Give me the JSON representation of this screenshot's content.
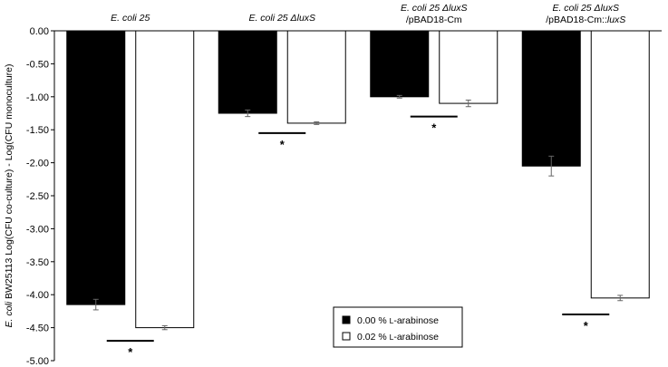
{
  "chart_data": {
    "type": "bar",
    "ylabel_parts": [
      {
        "text": "E. coli",
        "italic": true
      },
      {
        "text": " BW25113 Log(CFU co-culture) - Log(CFU monoculture)",
        "italic": false
      }
    ],
    "ylim": [
      -5.0,
      0.0
    ],
    "ytick_step": 0.5,
    "ytick_labels": [
      "0.00",
      "-0.50",
      "-1.00",
      "-1.50",
      "-2.00",
      "-2.50",
      "-3.00",
      "-3.50",
      "-4.00",
      "-4.50",
      "-5.00"
    ],
    "categories": [
      {
        "lines": [
          [
            {
              "text": "E. coli",
              "italic": true
            },
            {
              "text": " 25",
              "italic": true
            }
          ]
        ]
      },
      {
        "lines": [
          [
            {
              "text": "E. coli",
              "italic": true
            },
            {
              "text": " 25 Δ",
              "italic": true
            },
            {
              "text": "luxS",
              "italic": true
            }
          ]
        ]
      },
      {
        "lines": [
          [
            {
              "text": "E. coli",
              "italic": true
            },
            {
              "text": " 25 Δ",
              "italic": true
            },
            {
              "text": "luxS",
              "italic": true
            }
          ],
          [
            {
              "text": "/pBAD18-Cm",
              "italic": false
            }
          ]
        ]
      },
      {
        "lines": [
          [
            {
              "text": "E. coli",
              "italic": true
            },
            {
              "text": " 25 Δ",
              "italic": true
            },
            {
              "text": "luxS",
              "italic": true
            }
          ],
          [
            {
              "text": "/pBAD18-Cm::",
              "italic": false
            },
            {
              "text": "luxS",
              "italic": true
            }
          ]
        ]
      }
    ],
    "series": [
      {
        "name": "0.00 % L-arabinose",
        "name_parts": [
          {
            "text": "0.00 % ",
            "sc": false
          },
          {
            "text": "L",
            "sc": true
          },
          {
            "text": "-arabinose",
            "sc": false
          }
        ],
        "color": "#000000",
        "values": [
          -4.15,
          -1.25,
          -1.0,
          -2.05
        ],
        "errors": [
          0.08,
          0.05,
          0.02,
          0.15
        ]
      },
      {
        "name": "0.02 % L-arabinose",
        "name_parts": [
          {
            "text": "0.02 % ",
            "sc": false
          },
          {
            "text": "L",
            "sc": true
          },
          {
            "text": "-arabinose",
            "sc": false
          }
        ],
        "color": "#ffffff",
        "values": [
          -4.5,
          -1.4,
          -1.1,
          -4.05
        ],
        "errors": [
          0.03,
          0.02,
          0.05,
          0.04
        ]
      }
    ],
    "significance": [
      {
        "category_index": 0,
        "label": "*",
        "y": -4.7
      },
      {
        "category_index": 1,
        "label": "*",
        "y": -1.55
      },
      {
        "category_index": 2,
        "label": "*",
        "y": -1.3
      },
      {
        "category_index": 3,
        "label": "*",
        "y": -4.3
      }
    ],
    "legend_position": "bottom-center",
    "grid": false
  }
}
